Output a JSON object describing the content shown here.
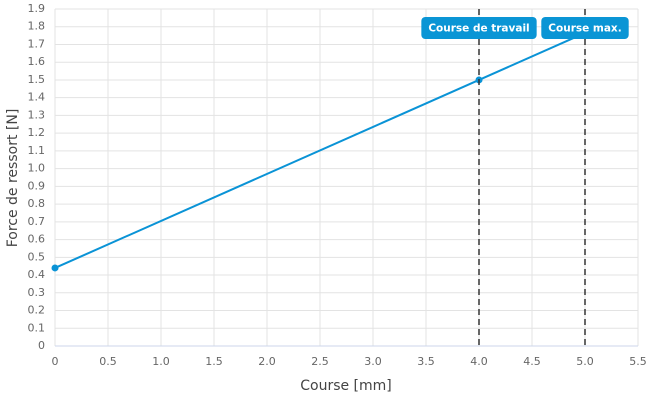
{
  "chart_data": {
    "type": "line",
    "x_label": "Course [mm]",
    "y_label": "Force de ressort [N]",
    "x": [
      0,
      4,
      5
    ],
    "series": [
      {
        "color": "#0a93d6",
        "values": [
          0.44,
          1.5,
          1.765
        ]
      }
    ],
    "xlim": [
      0,
      5.5
    ],
    "xticks": [
      0,
      0.5,
      {
        "value": 1,
        "label": "1.0"
      },
      1.5,
      {
        "value": 2,
        "label": "2.0"
      },
      2.5,
      {
        "value": 3,
        "label": "3.0"
      },
      3.5,
      {
        "value": 4,
        "label": "4.0"
      },
      4.5,
      {
        "value": 5,
        "label": "5.0"
      },
      5.5
    ],
    "ylim": [
      0,
      1.9
    ],
    "yticks": [
      0,
      0.1,
      0.2,
      0.3,
      0.4,
      0.5,
      0.6,
      0.7,
      0.8,
      0.9,
      {
        "value": 1,
        "label": "1.0"
      },
      1.1,
      1.2,
      1.3,
      1.4,
      1.5,
      1.6,
      1.7,
      1.8,
      1.9
    ],
    "grid": true,
    "vlines": [
      {
        "x": 4,
        "label": "Course de travail",
        "color": "#0a95d5"
      },
      {
        "x": 5,
        "label": "Course max.",
        "color": "#0a95d5"
      }
    ]
  }
}
